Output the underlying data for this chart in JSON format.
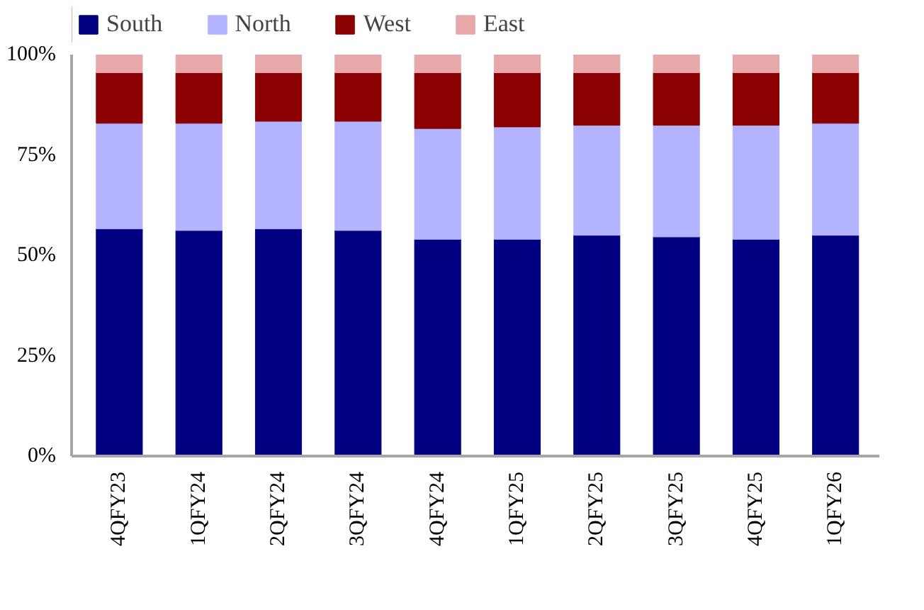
{
  "chart_data": {
    "type": "bar",
    "stacked": true,
    "categories": [
      "4QFY23",
      "1QFY24",
      "2QFY24",
      "3QFY24",
      "4QFY24",
      "1QFY25",
      "2QFY25",
      "3QFY25",
      "4QFY25",
      "1QFY26"
    ],
    "series": [
      {
        "name": "South",
        "color": "#000080",
        "values": [
          56.6,
          56.2,
          56.6,
          56.2,
          54.0,
          54.0,
          55.0,
          54.6,
          54.0,
          55.0
        ]
      },
      {
        "name": "North",
        "color": "#b3b3ff",
        "values": [
          26.3,
          26.7,
          26.8,
          27.2,
          27.6,
          28.0,
          27.4,
          27.8,
          28.4,
          27.9
        ]
      },
      {
        "name": "West",
        "color": "#8b0000",
        "values": [
          12.6,
          12.6,
          12.1,
          12.1,
          13.9,
          13.5,
          13.1,
          13.1,
          13.1,
          12.6
        ]
      },
      {
        "name": "East",
        "color": "#e6a8a8",
        "values": [
          4.5,
          4.5,
          4.5,
          4.5,
          4.5,
          4.5,
          4.5,
          4.5,
          4.5,
          4.5
        ]
      }
    ],
    "ylim": [
      0,
      100
    ],
    "yticks": [
      {
        "value": 0,
        "label": "0%"
      },
      {
        "value": 25,
        "label": "25%"
      },
      {
        "value": 50,
        "label": "50%"
      },
      {
        "value": 75,
        "label": "75%"
      },
      {
        "value": 100,
        "label": "100%"
      }
    ],
    "legend": "top left",
    "grid": false
  }
}
